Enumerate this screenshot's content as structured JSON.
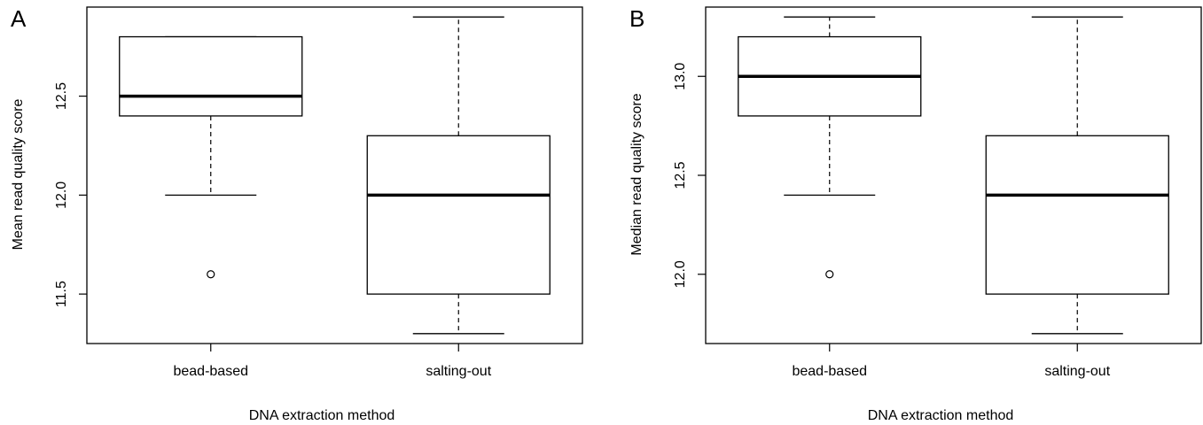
{
  "chart_data": [
    {
      "type": "box",
      "panel_label": "A",
      "xlabel": "DNA extraction method",
      "ylabel": "Mean read quality score",
      "ylim": [
        11.25,
        12.95
      ],
      "yticks": [
        "11.5",
        "12.0",
        "12.5"
      ],
      "categories": [
        "bead-based",
        "salting-out"
      ],
      "boxes": [
        {
          "category": "bead-based",
          "whisker_low": 12.0,
          "q1": 12.4,
          "median": 12.5,
          "q3": 12.8,
          "whisker_high": 12.8,
          "outliers": [
            11.6
          ]
        },
        {
          "category": "salting-out",
          "whisker_low": 11.3,
          "q1": 11.5,
          "median": 12.0,
          "q3": 12.3,
          "whisker_high": 12.9,
          "outliers": []
        }
      ]
    },
    {
      "type": "box",
      "panel_label": "B",
      "xlabel": "DNA extraction method",
      "ylabel": "Median read quality score",
      "ylim": [
        11.65,
        13.35
      ],
      "yticks": [
        "12.0",
        "12.5",
        "13.0"
      ],
      "categories": [
        "bead-based",
        "salting-out"
      ],
      "boxes": [
        {
          "category": "bead-based",
          "whisker_low": 12.4,
          "q1": 12.8,
          "median": 13.0,
          "q3": 13.2,
          "whisker_high": 13.3,
          "outliers": [
            12.0
          ]
        },
        {
          "category": "salting-out",
          "whisker_low": 11.7,
          "q1": 11.9,
          "median": 12.4,
          "q3": 12.7,
          "whisker_high": 13.3,
          "outliers": []
        }
      ]
    }
  ]
}
